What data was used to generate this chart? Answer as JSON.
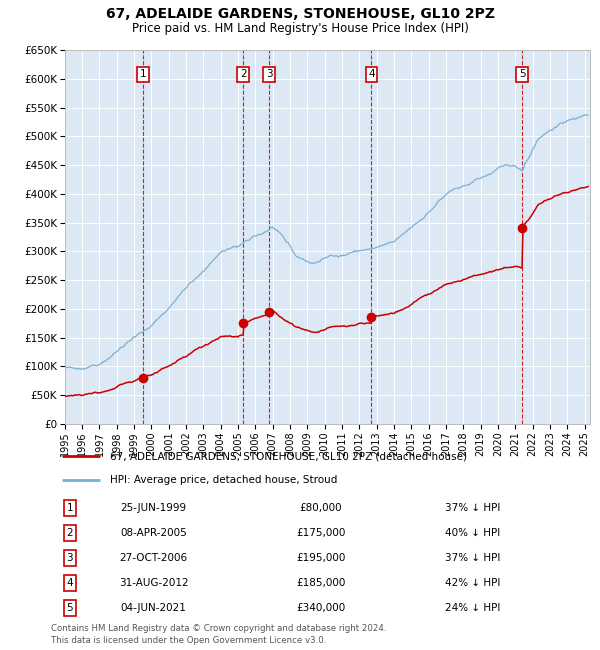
{
  "title": "67, ADELAIDE GARDENS, STONEHOUSE, GL10 2PZ",
  "subtitle": "Price paid vs. HM Land Registry's House Price Index (HPI)",
  "footnote1": "Contains HM Land Registry data © Crown copyright and database right 2024.",
  "footnote2": "This data is licensed under the Open Government Licence v3.0.",
  "legend_red": "67, ADELAIDE GARDENS, STONEHOUSE, GL10 2PZ (detached house)",
  "legend_blue": "HPI: Average price, detached house, Stroud",
  "ylim": [
    0,
    650000
  ],
  "yticks": [
    0,
    50000,
    100000,
    150000,
    200000,
    250000,
    300000,
    350000,
    400000,
    450000,
    500000,
    550000,
    600000,
    650000
  ],
  "ytick_labels": [
    "£0",
    "£50K",
    "£100K",
    "£150K",
    "£200K",
    "£250K",
    "£300K",
    "£350K",
    "£400K",
    "£450K",
    "£500K",
    "£550K",
    "£600K",
    "£650K"
  ],
  "xlim_start": 1995.0,
  "xlim_end": 2025.3,
  "transactions": [
    {
      "num": 1,
      "date_label": "25-JUN-1999",
      "price": 80000,
      "pct": "37%",
      "x_year": 1999.5
    },
    {
      "num": 2,
      "date_label": "08-APR-2005",
      "price": 175000,
      "pct": "40%",
      "x_year": 2005.3
    },
    {
      "num": 3,
      "date_label": "27-OCT-2006",
      "price": 195000,
      "pct": "37%",
      "x_year": 2006.8
    },
    {
      "num": 4,
      "date_label": "31-AUG-2012",
      "price": 185000,
      "pct": "42%",
      "x_year": 2012.7
    },
    {
      "num": 5,
      "date_label": "04-JUN-2021",
      "price": 340000,
      "pct": "24%",
      "x_year": 2021.4
    }
  ],
  "bg_color": "#dce9f5",
  "grid_color": "#ffffff",
  "red_color": "#cc0000",
  "blue_color": "#7ab0d4"
}
